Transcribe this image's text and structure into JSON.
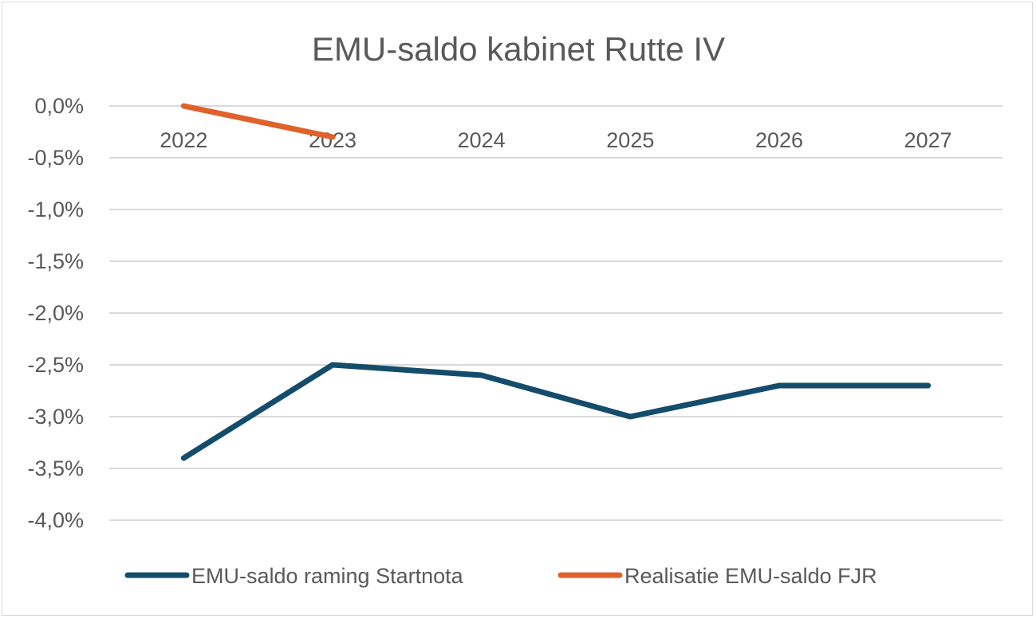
{
  "chart_data": {
    "type": "line",
    "title": "EMU-saldo kabinet Rutte IV",
    "xlabel": "",
    "ylabel": "",
    "categories": [
      "2022",
      "2023",
      "2024",
      "2025",
      "2026",
      "2027"
    ],
    "ylim": [
      -4.0,
      0.0
    ],
    "yticks": [
      0.0,
      -0.5,
      -1.0,
      -1.5,
      -2.0,
      -2.5,
      -3.0,
      -3.5,
      -4.0
    ],
    "ytick_labels": [
      "0,0%",
      "-0,5%",
      "-1,0%",
      "-1,5%",
      "-2,0%",
      "-2,5%",
      "-3,0%",
      "-3,5%",
      "-4,0%"
    ],
    "grid": true,
    "legend_position": "bottom",
    "series": [
      {
        "name": "EMU-saldo raming Startnota",
        "color": "#144d6b",
        "values": [
          -3.4,
          -2.5,
          -2.6,
          -3.0,
          -2.7,
          -2.7
        ]
      },
      {
        "name": "Realisatie EMU-saldo FJR",
        "color": "#e0622a",
        "values": [
          0.0,
          -0.3,
          null,
          null,
          null,
          null
        ]
      }
    ]
  }
}
